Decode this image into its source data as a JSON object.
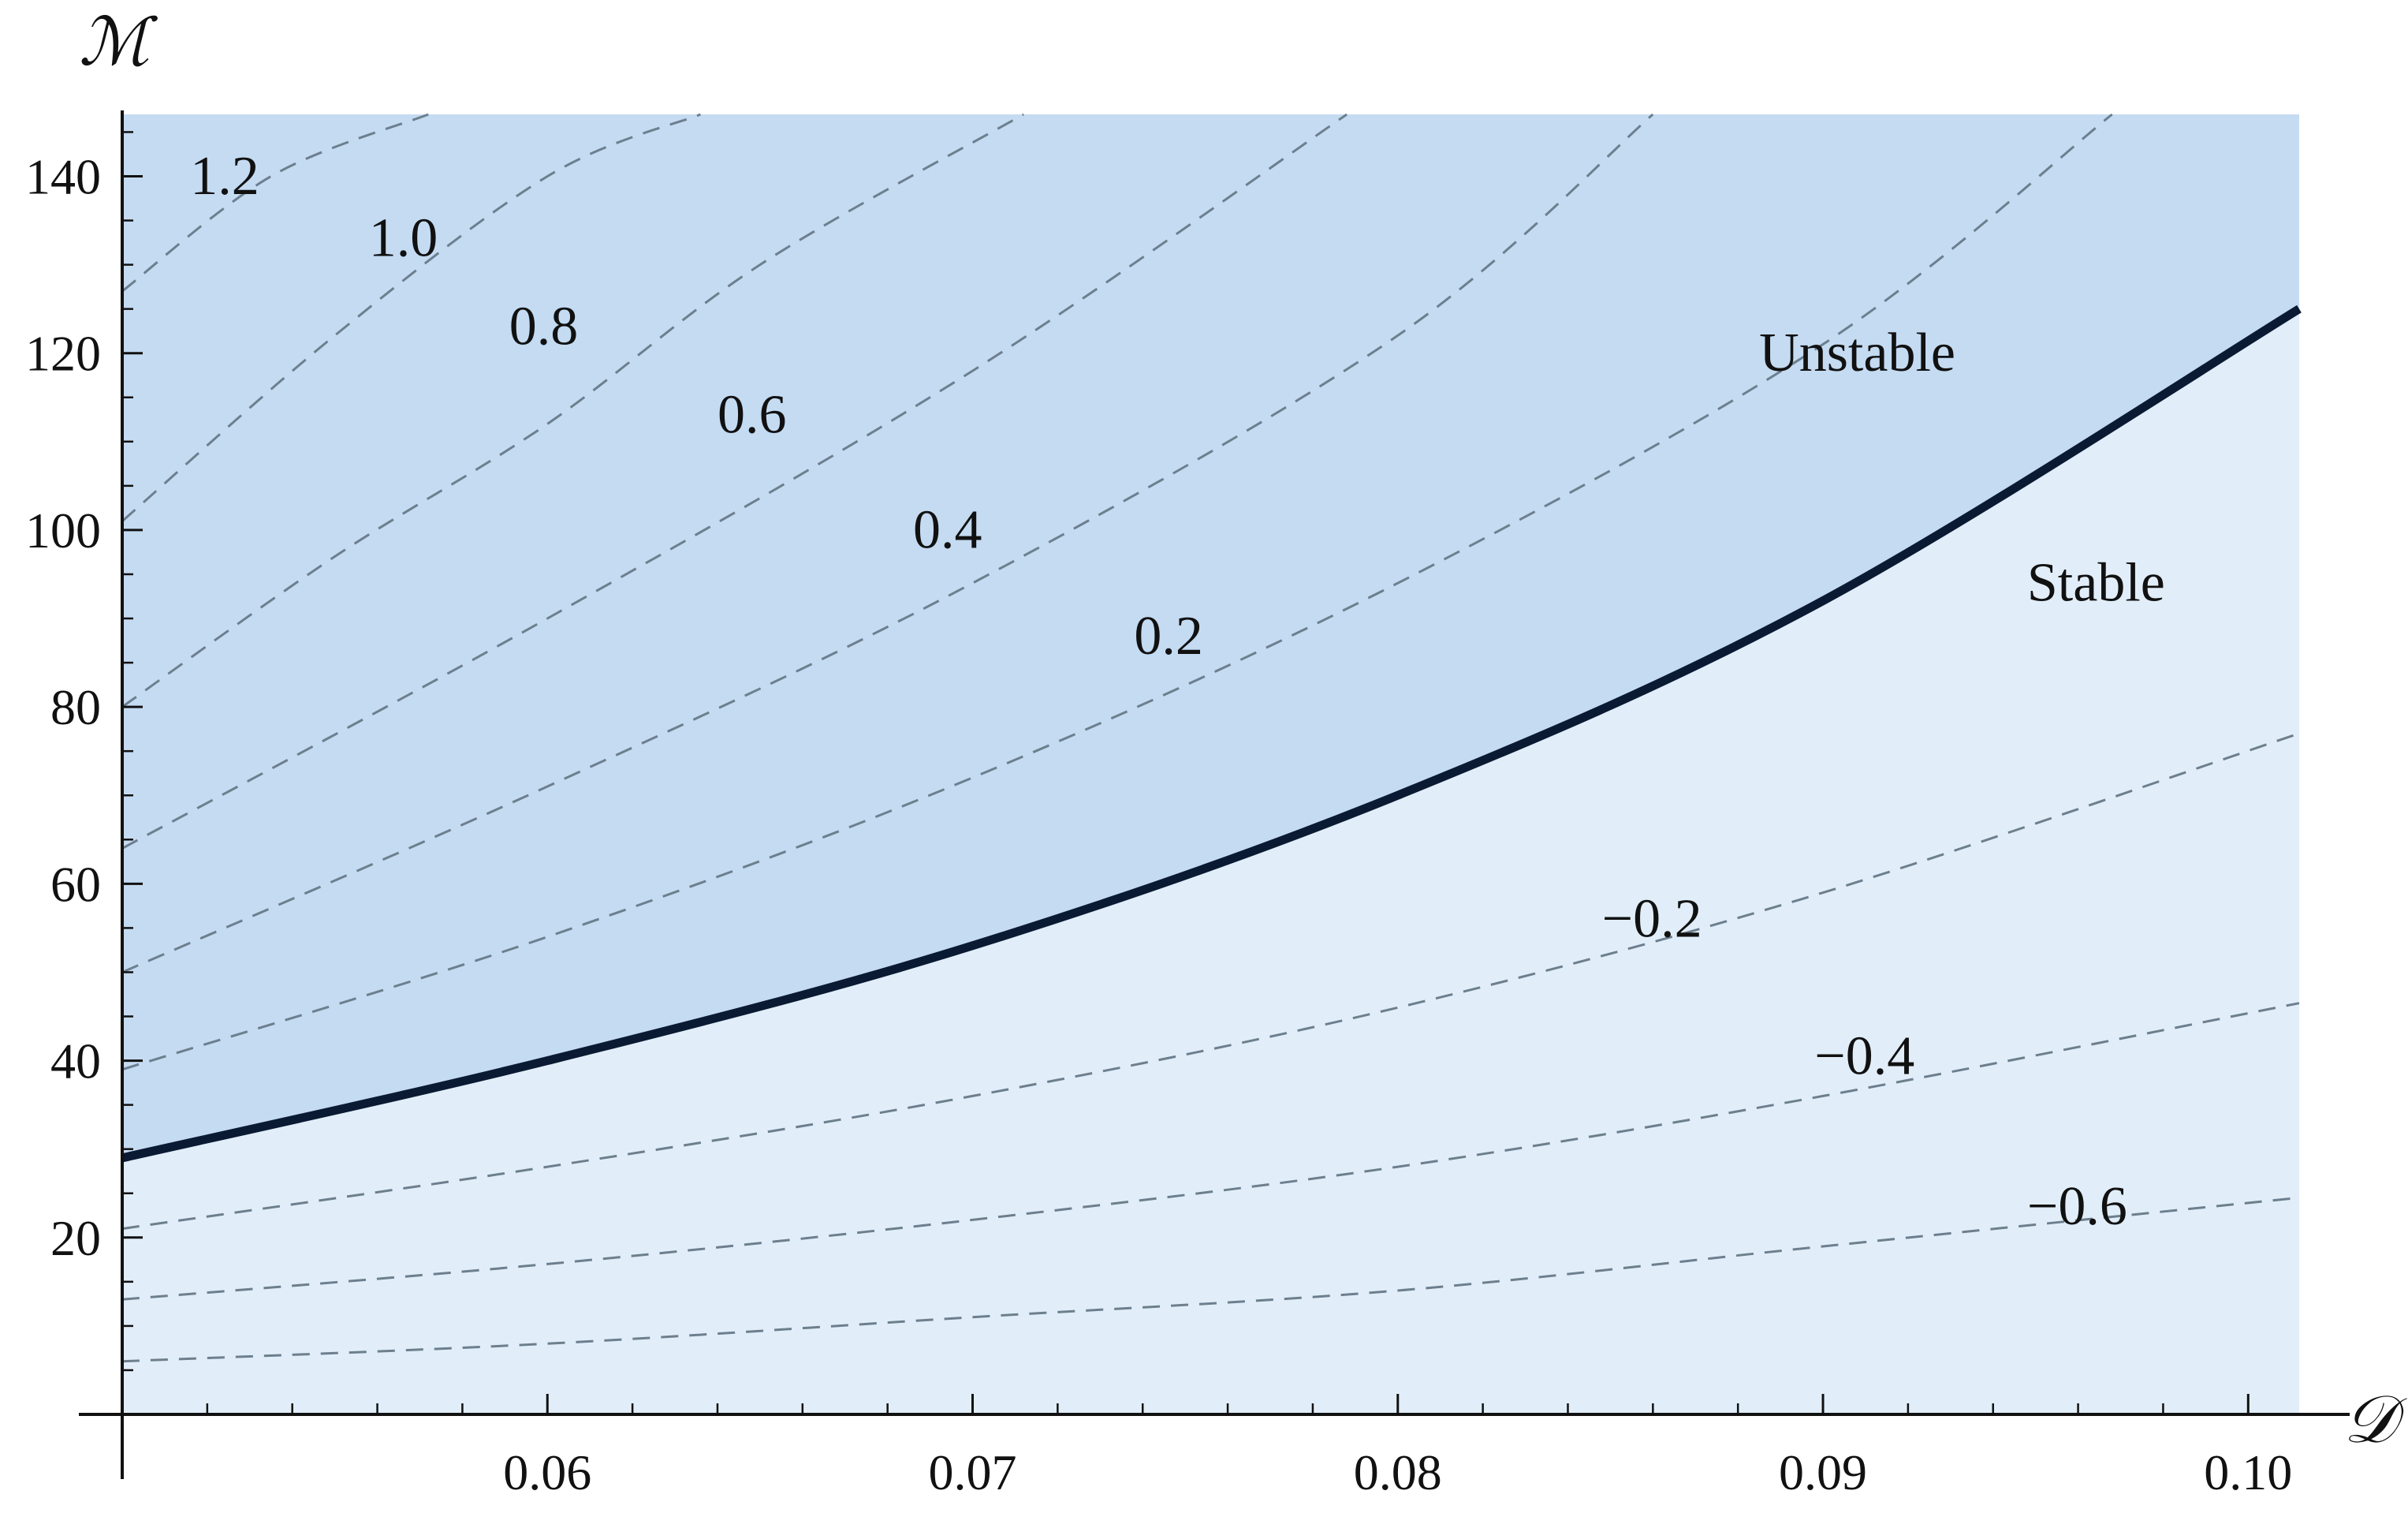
{
  "chart_data": {
    "type": "contour",
    "xlabel": "𝒟",
    "ylabel": "ℳ",
    "xlim": [
      0.05,
      0.1012
    ],
    "ylim": [
      0,
      147
    ],
    "x_ticks": [
      {
        "value": 0.06,
        "label": "0.06"
      },
      {
        "value": 0.07,
        "label": "0.07"
      },
      {
        "value": 0.08,
        "label": "0.08"
      },
      {
        "value": 0.09,
        "label": "0.09"
      },
      {
        "value": 0.1,
        "label": "0.10"
      }
    ],
    "y_ticks": [
      {
        "value": 20,
        "label": "20"
      },
      {
        "value": 40,
        "label": "40"
      },
      {
        "value": 60,
        "label": "60"
      },
      {
        "value": 80,
        "label": "80"
      },
      {
        "value": 100,
        "label": "100"
      },
      {
        "value": 120,
        "label": "120"
      },
      {
        "value": 140,
        "label": "140"
      }
    ],
    "regions": [
      {
        "name": "Unstable",
        "position": "above boundary"
      },
      {
        "name": "Stable",
        "position": "below boundary"
      }
    ],
    "boundary": {
      "x": [
        0.05,
        0.06,
        0.07,
        0.08,
        0.09,
        0.1012
      ],
      "y": [
        29,
        40,
        53,
        70,
        92,
        125
      ]
    },
    "contours": [
      {
        "label": "1.2",
        "x": [
          0.05,
          0.0535,
          0.0572
        ],
        "y": [
          127,
          140,
          147
        ]
      },
      {
        "label": "1.0",
        "x": [
          0.05,
          0.055,
          0.06,
          0.0636
        ],
        "y": [
          101,
          122,
          140,
          147
        ]
      },
      {
        "label": "0.8",
        "x": [
          0.05,
          0.055,
          0.06,
          0.065,
          0.0712
        ],
        "y": [
          80,
          97,
          112,
          130,
          147
        ]
      },
      {
        "label": "0.6",
        "x": [
          0.05,
          0.06,
          0.07,
          0.0788
        ],
        "y": [
          64,
          90,
          118,
          147
        ]
      },
      {
        "label": "0.4",
        "x": [
          0.05,
          0.06,
          0.07,
          0.08,
          0.086
        ],
        "y": [
          50,
          71,
          94,
          122,
          147
        ]
      },
      {
        "label": "0.2",
        "x": [
          0.05,
          0.06,
          0.07,
          0.08,
          0.09,
          0.0968
        ],
        "y": [
          39,
          54,
          72,
          94,
          121,
          147
        ]
      },
      {
        "label": "−0.2",
        "x": [
          0.05,
          0.06,
          0.07,
          0.08,
          0.09,
          0.1012
        ],
        "y": [
          21,
          28,
          36,
          46,
          59,
          77
        ]
      },
      {
        "label": "−0.4",
        "x": [
          0.05,
          0.06,
          0.07,
          0.08,
          0.09,
          0.1012
        ],
        "y": [
          13,
          17,
          22,
          28,
          36,
          46.5
        ]
      },
      {
        "label": "−0.6",
        "x": [
          0.05,
          0.06,
          0.07,
          0.08,
          0.09,
          0.1012
        ],
        "y": [
          6,
          8,
          11,
          14,
          19,
          24.5
        ]
      }
    ],
    "contour_labels": [
      {
        "text": "1.2",
        "x": 0.0516,
        "y": 138
      },
      {
        "text": "1.0",
        "x": 0.0558,
        "y": 131
      },
      {
        "text": "0.8",
        "x": 0.0591,
        "y": 121
      },
      {
        "text": "0.6",
        "x": 0.064,
        "y": 111
      },
      {
        "text": "0.4",
        "x": 0.0686,
        "y": 98
      },
      {
        "text": "0.2",
        "x": 0.0738,
        "y": 86
      },
      {
        "text": "−0.2",
        "x": 0.0848,
        "y": 54
      },
      {
        "text": "−0.4",
        "x": 0.0898,
        "y": 38.5
      },
      {
        "text": "−0.6",
        "x": 0.0948,
        "y": 21.5
      }
    ],
    "region_label_positions": [
      {
        "text": "Unstable",
        "x": 0.0885,
        "y": 118
      },
      {
        "text": "Stable",
        "x": 0.0948,
        "y": 92
      }
    ],
    "colors": {
      "unstable": "#c4dbf2",
      "stable": "#e1eef9",
      "boundary": "#0b1a33",
      "contour": "#6d7f8e"
    },
    "grid": false
  }
}
